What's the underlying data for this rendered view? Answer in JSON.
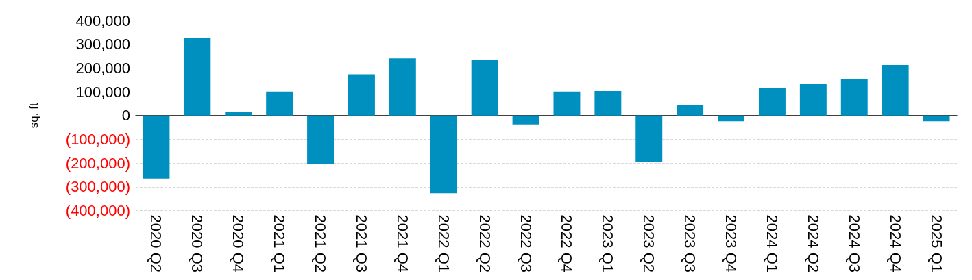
{
  "chart_data": {
    "type": "bar",
    "ylabel": "sq. ft",
    "categories": [
      "2020 Q2",
      "2020 Q3",
      "2020 Q4",
      "2021 Q1",
      "2021 Q2",
      "2021 Q3",
      "2021 Q4",
      "2022 Q1",
      "2022 Q2",
      "2022 Q3",
      "2022 Q4",
      "2023 Q1",
      "2023 Q2",
      "2023 Q3",
      "2023 Q4",
      "2024 Q1",
      "2024 Q2",
      "2024 Q3",
      "2024 Q4",
      "2025 Q1"
    ],
    "values": [
      -265000,
      327000,
      17000,
      101000,
      -202000,
      174000,
      241000,
      -327000,
      234000,
      -37000,
      101000,
      103000,
      -196000,
      43000,
      -24000,
      116000,
      133000,
      155000,
      213000,
      -24000
    ],
    "color": "#0090c0",
    "ylim": [
      -400000,
      400000
    ],
    "yticks": [
      {
        "value": -400000,
        "label": "(400,000)"
      },
      {
        "value": -300000,
        "label": "(300,000)"
      },
      {
        "value": -200000,
        "label": "(200,000)"
      },
      {
        "value": -100000,
        "label": "(100,000)"
      },
      0,
      {
        "value": 100000,
        "label": "100,000"
      },
      {
        "value": 200000,
        "label": "200,000"
      },
      {
        "value": 300000,
        "label": "300,000"
      },
      {
        "value": 400000,
        "label": "400,000"
      }
    ],
    "grid": "y"
  }
}
